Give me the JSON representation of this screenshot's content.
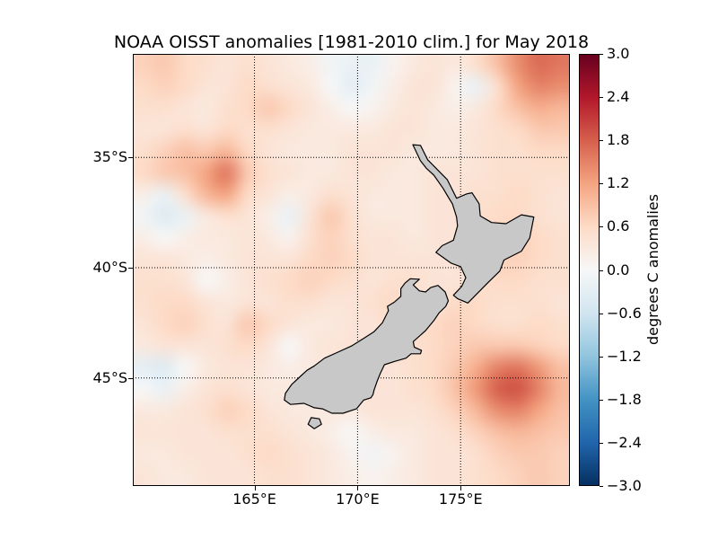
{
  "figure": {
    "background": "#ffffff"
  },
  "chart_data": {
    "type": "heatmap",
    "title": "NOAA OISST anomalies [1981-2010 clim.] for May 2018",
    "colorbar_label": "degrees C anomalies",
    "vmin": -3.0,
    "vmax": 3.0,
    "lon_range": [
      159.1,
      180.3
    ],
    "lat_range": [
      30.3,
      49.9
    ],
    "grid_style": "dotted",
    "x_ticks": [
      {
        "lon": 165,
        "label": "165°E"
      },
      {
        "lon": 170,
        "label": "170°E"
      },
      {
        "lon": 175,
        "label": "175°E"
      }
    ],
    "y_ticks": [
      {
        "lat": 35,
        "label": "35°S"
      },
      {
        "lat": 40,
        "label": "40°S"
      },
      {
        "lat": 45,
        "label": "45°S"
      }
    ],
    "colorbar_ticks": [
      {
        "value": 3.0,
        "label": "3.0"
      },
      {
        "value": 2.4,
        "label": "2.4"
      },
      {
        "value": 1.8,
        "label": "1.8"
      },
      {
        "value": 1.2,
        "label": "1.2"
      },
      {
        "value": 0.6,
        "label": "0.6"
      },
      {
        "value": 0.0,
        "label": "0.0"
      },
      {
        "value": -0.6,
        "label": "−0.6"
      },
      {
        "value": -1.2,
        "label": "−1.2"
      },
      {
        "value": -1.8,
        "label": "−1.8"
      },
      {
        "value": -2.4,
        "label": "−2.4"
      },
      {
        "value": -3.0,
        "label": "−3.0"
      }
    ],
    "colormap": {
      "name": "RdBu_r",
      "stops": [
        [
          -3.0,
          "#053061"
        ],
        [
          -2.4,
          "#2166ac"
        ],
        [
          -1.8,
          "#4393c3"
        ],
        [
          -1.2,
          "#92c5de"
        ],
        [
          -0.6,
          "#d1e5f0"
        ],
        [
          0.0,
          "#f7f7f7"
        ],
        [
          0.6,
          "#fddbc7"
        ],
        [
          1.2,
          "#f4a582"
        ],
        [
          1.8,
          "#d6604d"
        ],
        [
          2.4,
          "#b2182b"
        ],
        [
          3.0,
          "#67001f"
        ]
      ]
    },
    "land": {
      "fill": "#c8c8c8",
      "stroke": "#000000"
    },
    "grid_values": {
      "units": "degrees C anomaly",
      "lon_start": 159.5,
      "lon_step": 1.05,
      "lat_start": 30.5,
      "lat_step": 1.02,
      "values": [
        [
          0.7,
          0.8,
          0.6,
          0.5,
          0.4,
          0.5,
          0.4,
          0.3,
          0.2,
          -0.1,
          -0.2,
          -0.2,
          0.1,
          0.3,
          0.4,
          0.3,
          0.5,
          0.9,
          1.4,
          1.7,
          1.6
        ],
        [
          0.6,
          0.7,
          0.6,
          0.4,
          0.4,
          0.6,
          0.5,
          0.4,
          0.3,
          0.0,
          -0.3,
          -0.1,
          0.2,
          0.4,
          0.4,
          0.1,
          -0.2,
          0.5,
          1.2,
          1.5,
          1.4
        ],
        [
          0.5,
          0.5,
          0.4,
          0.3,
          0.5,
          0.6,
          0.8,
          0.6,
          0.4,
          0.2,
          0.0,
          0.1,
          0.3,
          0.4,
          0.3,
          0.2,
          0.3,
          0.6,
          0.9,
          1.1,
          1.0
        ],
        [
          0.4,
          0.4,
          0.5,
          0.4,
          0.6,
          0.5,
          0.5,
          0.4,
          0.3,
          0.3,
          0.3,
          0.3,
          0.4,
          0.4,
          0.3,
          0.3,
          0.4,
          0.5,
          0.6,
          0.8,
          0.8
        ],
        [
          0.5,
          0.7,
          0.9,
          0.8,
          1.0,
          0.6,
          0.4,
          0.3,
          0.3,
          0.3,
          0.4,
          0.4,
          0.4,
          0.3,
          0.3,
          0.3,
          0.4,
          0.5,
          0.5,
          0.6,
          0.6
        ],
        [
          0.6,
          0.8,
          0.9,
          1.2,
          1.6,
          0.8,
          0.5,
          0.4,
          0.3,
          0.3,
          0.4,
          0.4,
          0.3,
          0.3,
          0.4,
          0.4,
          0.4,
          0.5,
          0.5,
          0.5,
          0.5
        ],
        [
          0.2,
          -0.2,
          0.5,
          1.0,
          1.2,
          0.6,
          0.4,
          0.2,
          0.3,
          0.5,
          0.4,
          0.3,
          0.3,
          0.3,
          0.4,
          0.4,
          0.5,
          0.5,
          0.6,
          0.5,
          0.4
        ],
        [
          -0.1,
          -0.4,
          -0.2,
          0.3,
          0.5,
          0.4,
          0.2,
          -0.2,
          0.4,
          0.8,
          0.5,
          0.3,
          0.3,
          0.3,
          0.4,
          0.4,
          0.5,
          0.6,
          0.6,
          0.5,
          0.4
        ],
        [
          0.2,
          0.0,
          0.2,
          0.3,
          0.3,
          0.4,
          0.3,
          0.1,
          0.5,
          0.7,
          0.5,
          0.4,
          0.4,
          0.3,
          0.4,
          0.4,
          0.5,
          0.6,
          0.7,
          0.6,
          0.5
        ],
        [
          0.4,
          0.4,
          0.3,
          0.2,
          0.3,
          0.4,
          0.4,
          0.4,
          0.6,
          0.7,
          0.6,
          0.4,
          0.4,
          0.4,
          0.4,
          0.4,
          0.5,
          0.7,
          0.7,
          0.6,
          0.5
        ],
        [
          0.5,
          0.5,
          0.4,
          0.0,
          0.2,
          0.4,
          0.5,
          0.6,
          0.7,
          0.6,
          0.5,
          0.4,
          0.5,
          0.5,
          0.4,
          0.4,
          0.5,
          0.6,
          0.6,
          0.5,
          0.5
        ],
        [
          0.5,
          0.6,
          0.6,
          0.4,
          0.3,
          0.4,
          0.4,
          0.5,
          0.5,
          0.4,
          0.4,
          0.5,
          0.6,
          0.5,
          0.4,
          0.6,
          0.6,
          0.5,
          0.5,
          0.5,
          0.4
        ],
        [
          0.4,
          0.6,
          0.7,
          0.5,
          0.4,
          0.8,
          0.6,
          0.4,
          0.3,
          0.3,
          0.4,
          0.4,
          0.5,
          0.5,
          0.6,
          0.7,
          0.6,
          0.5,
          0.5,
          0.6,
          0.5
        ],
        [
          0.3,
          0.4,
          0.4,
          0.4,
          0.5,
          0.6,
          0.4,
          0.0,
          0.3,
          0.4,
          0.4,
          0.4,
          0.5,
          0.5,
          0.6,
          0.7,
          0.8,
          0.8,
          0.8,
          0.7,
          0.6
        ],
        [
          -0.3,
          -0.4,
          0.0,
          0.3,
          0.4,
          0.4,
          0.3,
          0.2,
          0.3,
          0.3,
          0.4,
          0.4,
          0.4,
          0.5,
          0.6,
          0.8,
          1.1,
          1.5,
          1.6,
          1.3,
          0.9
        ],
        [
          0.0,
          -0.2,
          0.2,
          0.4,
          0.5,
          0.4,
          0.3,
          0.3,
          0.2,
          0.3,
          0.4,
          0.4,
          0.4,
          0.5,
          0.6,
          0.9,
          1.3,
          1.8,
          1.9,
          1.5,
          1.0
        ],
        [
          0.3,
          0.3,
          0.4,
          0.5,
          0.7,
          0.6,
          0.4,
          0.3,
          0.3,
          0.3,
          0.3,
          0.4,
          0.4,
          0.4,
          0.5,
          0.7,
          1.0,
          1.4,
          1.5,
          1.2,
          0.9
        ],
        [
          0.4,
          0.4,
          0.4,
          0.4,
          0.5,
          0.5,
          0.5,
          0.4,
          0.3,
          0.2,
          0.0,
          0.2,
          0.3,
          0.3,
          0.4,
          0.5,
          0.7,
          0.9,
          1.0,
          0.9,
          0.8
        ],
        [
          0.3,
          0.3,
          0.4,
          0.4,
          0.4,
          0.5,
          0.6,
          0.5,
          0.4,
          0.3,
          0.1,
          -0.1,
          0.1,
          0.3,
          0.4,
          0.4,
          0.5,
          0.7,
          0.8,
          0.8,
          0.7
        ],
        [
          0.4,
          0.3,
          0.3,
          0.4,
          0.4,
          0.4,
          0.5,
          0.5,
          0.4,
          0.3,
          0.2,
          0.1,
          0.2,
          0.3,
          0.4,
          0.4,
          0.5,
          0.6,
          0.7,
          0.8,
          0.7
        ]
      ]
    },
    "coastline_polygons": {
      "north-island": [
        [
          172.68,
          34.42
        ],
        [
          173.05,
          34.45
        ],
        [
          173.4,
          35.1
        ],
        [
          174.35,
          36.0
        ],
        [
          174.8,
          36.85
        ],
        [
          175.3,
          36.65
        ],
        [
          175.55,
          36.6
        ],
        [
          175.9,
          37.1
        ],
        [
          175.95,
          37.65
        ],
        [
          176.5,
          37.95
        ],
        [
          177.2,
          38.0
        ],
        [
          177.95,
          37.6
        ],
        [
          178.55,
          37.7
        ],
        [
          178.35,
          38.65
        ],
        [
          177.95,
          39.25
        ],
        [
          177.1,
          39.65
        ],
        [
          176.9,
          40.15
        ],
        [
          176.3,
          40.7
        ],
        [
          175.35,
          41.6
        ],
        [
          174.85,
          41.4
        ],
        [
          174.65,
          41.25
        ],
        [
          175.05,
          40.85
        ],
        [
          175.25,
          40.45
        ],
        [
          175.0,
          39.95
        ],
        [
          174.55,
          39.8
        ],
        [
          173.8,
          39.3
        ],
        [
          174.1,
          39.0
        ],
        [
          174.65,
          38.75
        ],
        [
          174.85,
          38.1
        ],
        [
          174.8,
          37.7
        ],
        [
          174.6,
          37.1
        ],
        [
          174.4,
          36.8
        ],
        [
          174.15,
          36.4
        ],
        [
          173.7,
          35.8
        ],
        [
          173.35,
          35.5
        ],
        [
          173.05,
          35.15
        ]
      ],
      "south-island": [
        [
          172.55,
          40.5
        ],
        [
          173.0,
          40.52
        ],
        [
          172.7,
          40.78
        ],
        [
          173.0,
          41.05
        ],
        [
          173.3,
          41.1
        ],
        [
          173.55,
          40.9
        ],
        [
          173.9,
          40.8
        ],
        [
          174.25,
          41.1
        ],
        [
          174.4,
          41.5
        ],
        [
          174.28,
          41.75
        ],
        [
          173.95,
          42.05
        ],
        [
          173.7,
          42.4
        ],
        [
          173.3,
          42.85
        ],
        [
          172.7,
          43.35
        ],
        [
          172.75,
          43.6
        ],
        [
          173.1,
          43.75
        ],
        [
          173.05,
          43.9
        ],
        [
          172.6,
          43.9
        ],
        [
          172.35,
          44.1
        ],
        [
          171.8,
          44.25
        ],
        [
          171.3,
          44.4
        ],
        [
          171.1,
          44.8
        ],
        [
          170.95,
          45.15
        ],
        [
          170.8,
          45.55
        ],
        [
          170.75,
          45.75
        ],
        [
          170.65,
          45.9
        ],
        [
          170.3,
          46.0
        ],
        [
          169.95,
          46.4
        ],
        [
          169.3,
          46.6
        ],
        [
          168.75,
          46.6
        ],
        [
          168.3,
          46.4
        ],
        [
          167.9,
          46.35
        ],
        [
          167.4,
          46.15
        ],
        [
          166.75,
          46.2
        ],
        [
          166.45,
          46.0
        ],
        [
          166.5,
          45.7
        ],
        [
          166.8,
          45.3
        ],
        [
          167.2,
          44.95
        ],
        [
          167.55,
          44.65
        ],
        [
          167.9,
          44.45
        ],
        [
          168.4,
          44.1
        ],
        [
          169.0,
          43.85
        ],
        [
          169.7,
          43.55
        ],
        [
          170.3,
          43.2
        ],
        [
          170.8,
          42.9
        ],
        [
          171.2,
          42.5
        ],
        [
          171.5,
          41.95
        ],
        [
          171.45,
          41.75
        ],
        [
          171.8,
          41.55
        ],
        [
          172.1,
          41.3
        ],
        [
          172.1,
          40.95
        ],
        [
          172.3,
          40.7
        ]
      ],
      "stewart-island": [
        [
          167.75,
          46.8
        ],
        [
          168.15,
          46.85
        ],
        [
          168.25,
          47.1
        ],
        [
          167.9,
          47.3
        ],
        [
          167.6,
          47.1
        ]
      ]
    }
  }
}
